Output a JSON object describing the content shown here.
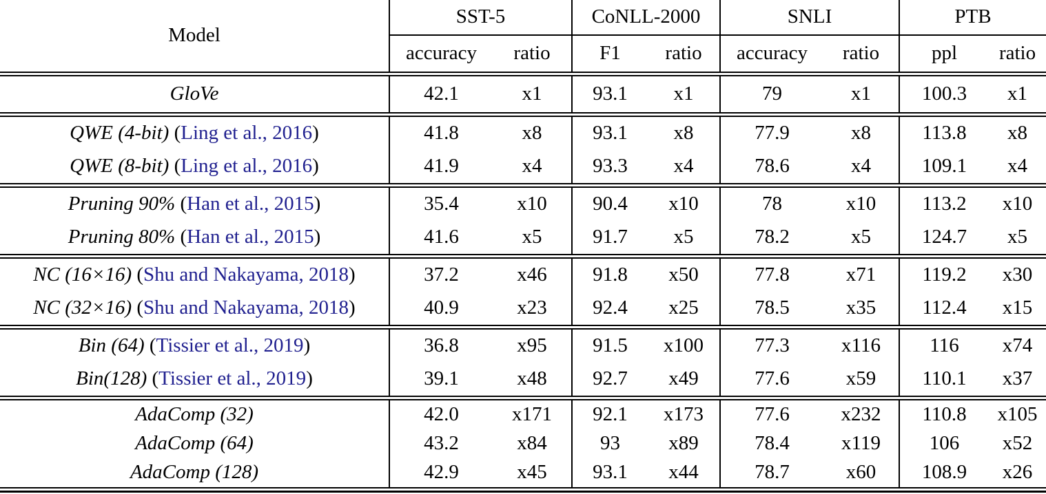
{
  "colors": {
    "text": "#000000",
    "rule": "#000000",
    "citation_link": "#20208f"
  },
  "table": {
    "citation_wrap": {
      "open": "(",
      "close": ")"
    },
    "header": {
      "model_label": "Model",
      "groups": [
        {
          "name": "SST-5",
          "metric_label": "accuracy",
          "ratio_label": "ratio"
        },
        {
          "name": "CoNLL-2000",
          "metric_label": "F1",
          "ratio_label": "ratio"
        },
        {
          "name": "SNLI",
          "metric_label": "accuracy",
          "ratio_label": "ratio"
        },
        {
          "name": "PTB",
          "metric_label": "ppl",
          "ratio_label": "ratio"
        }
      ]
    },
    "sections": [
      {
        "rows": [
          {
            "model": "GloVe",
            "citation": "",
            "values": {
              "sst5_accuracy": "42.1",
              "sst5_ratio": "x1",
              "conll_f1": "93.1",
              "conll_ratio": "x1",
              "snli_accuracy": "79",
              "snli_ratio": "x1",
              "ptb_ppl": "100.3",
              "ptb_ratio": "x1"
            }
          }
        ]
      },
      {
        "rows": [
          {
            "model": "QWE (4-bit)",
            "citation": "Ling et al., 2016",
            "values": {
              "sst5_accuracy": "41.8",
              "sst5_ratio": "x8",
              "conll_f1": "93.1",
              "conll_ratio": "x8",
              "snli_accuracy": "77.9",
              "snli_ratio": "x8",
              "ptb_ppl": "113.8",
              "ptb_ratio": "x8"
            }
          },
          {
            "model": "QWE (8-bit)",
            "citation": "Ling et al., 2016",
            "values": {
              "sst5_accuracy": "41.9",
              "sst5_ratio": "x4",
              "conll_f1": "93.3",
              "conll_ratio": "x4",
              "snli_accuracy": "78.6",
              "snli_ratio": "x4",
              "ptb_ppl": "109.1",
              "ptb_ratio": "x4"
            }
          }
        ]
      },
      {
        "rows": [
          {
            "model": "Pruning 90%",
            "citation": "Han et al., 2015",
            "values": {
              "sst5_accuracy": "35.4",
              "sst5_ratio": "x10",
              "conll_f1": "90.4",
              "conll_ratio": "x10",
              "snli_accuracy": "78",
              "snli_ratio": "x10",
              "ptb_ppl": "113.2",
              "ptb_ratio": "x10"
            }
          },
          {
            "model": "Pruning 80%",
            "citation": "Han et al., 2015",
            "values": {
              "sst5_accuracy": "41.6",
              "sst5_ratio": "x5",
              "conll_f1": "91.7",
              "conll_ratio": "x5",
              "snli_accuracy": "78.2",
              "snli_ratio": "x5",
              "ptb_ppl": "124.7",
              "ptb_ratio": "x5"
            }
          }
        ]
      },
      {
        "rows": [
          {
            "model": "NC (16×16)",
            "citation": "Shu and Nakayama, 2018",
            "values": {
              "sst5_accuracy": "37.2",
              "sst5_ratio": "x46",
              "conll_f1": "91.8",
              "conll_ratio": "x50",
              "snli_accuracy": "77.8",
              "snli_ratio": "x71",
              "ptb_ppl": "119.2",
              "ptb_ratio": "x30"
            }
          },
          {
            "model": "NC (32×16)",
            "citation": "Shu and Nakayama, 2018",
            "values": {
              "sst5_accuracy": "40.9",
              "sst5_ratio": "x23",
              "conll_f1": "92.4",
              "conll_ratio": "x25",
              "snli_accuracy": "78.5",
              "snli_ratio": "x35",
              "ptb_ppl": "112.4",
              "ptb_ratio": "x15"
            }
          }
        ]
      },
      {
        "rows": [
          {
            "model": "Bin (64)",
            "citation": "Tissier et al., 2019",
            "values": {
              "sst5_accuracy": "36.8",
              "sst5_ratio": "x95",
              "conll_f1": "91.5",
              "conll_ratio": "x100",
              "snli_accuracy": "77.3",
              "snli_ratio": "x116",
              "ptb_ppl": "116",
              "ptb_ratio": "x74"
            }
          },
          {
            "model": "Bin(128)",
            "citation": "Tissier et al., 2019",
            "values": {
              "sst5_accuracy": "39.1",
              "sst5_ratio": "x48",
              "conll_f1": "92.7",
              "conll_ratio": "x49",
              "snli_accuracy": "77.6",
              "snli_ratio": "x59",
              "ptb_ppl": "110.1",
              "ptb_ratio": "x37"
            }
          }
        ]
      },
      {
        "rows": [
          {
            "model": "AdaComp (32)",
            "citation": "",
            "values": {
              "sst5_accuracy": "42.0",
              "sst5_ratio": "x171",
              "conll_f1": "92.1",
              "conll_ratio": "x173",
              "snli_accuracy": "77.6",
              "snli_ratio": "x232",
              "ptb_ppl": "110.8",
              "ptb_ratio": "x105"
            }
          },
          {
            "model": "AdaComp (64)",
            "citation": "",
            "values": {
              "sst5_accuracy": "43.2",
              "sst5_ratio": "x84",
              "conll_f1": "93",
              "conll_ratio": "x89",
              "snli_accuracy": "78.4",
              "snli_ratio": "x119",
              "ptb_ppl": "106",
              "ptb_ratio": "x52"
            }
          },
          {
            "model": "AdaComp (128)",
            "citation": "",
            "values": {
              "sst5_accuracy": "42.9",
              "sst5_ratio": "x45",
              "conll_f1": "93.1",
              "conll_ratio": "x44",
              "snli_accuracy": "78.7",
              "snli_ratio": "x60",
              "ptb_ppl": "108.9",
              "ptb_ratio": "x26"
            }
          }
        ]
      }
    ]
  }
}
